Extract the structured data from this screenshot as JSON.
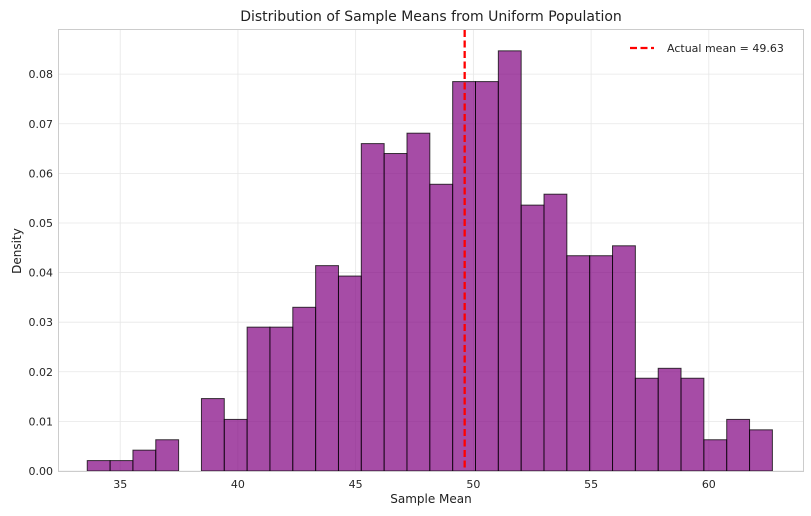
{
  "chart_data": {
    "type": "bar",
    "subtype": "histogram",
    "title": "Distribution of Sample Means from Uniform Population",
    "xlabel": "Sample Mean",
    "ylabel": "Density",
    "xlim": [
      32.4,
      64.0
    ],
    "ylim": [
      0,
      0.0889
    ],
    "xticks": [
      35,
      40,
      45,
      50,
      55,
      60
    ],
    "yticks": [
      0.0,
      0.01,
      0.02,
      0.03,
      0.04,
      0.05,
      0.06,
      0.07,
      0.08
    ],
    "ytick_labels": [
      "0.00",
      "0.01",
      "0.02",
      "0.03",
      "0.04",
      "0.05",
      "0.06",
      "0.07",
      "0.08"
    ],
    "bin_start": 33.6,
    "bin_width": 0.97,
    "densities": [
      0.0021,
      0.0021,
      0.0042,
      0.0063,
      0.0,
      0.0146,
      0.0104,
      0.029,
      0.029,
      0.033,
      0.0414,
      0.0393,
      0.066,
      0.064,
      0.0681,
      0.0578,
      0.0785,
      0.0785,
      0.0847,
      0.0536,
      0.0558,
      0.0434,
      0.0434,
      0.0454,
      0.0187,
      0.0207,
      0.0187,
      0.0063,
      0.0104,
      0.0083
    ],
    "bar_color": "#800080",
    "grid": true,
    "mean_line": {
      "value": 49.63,
      "color": "#ff0000",
      "label": "Actual mean = 49.63"
    },
    "legend": {
      "position": "top-right",
      "entries": [
        "Actual mean = 49.63"
      ]
    }
  }
}
